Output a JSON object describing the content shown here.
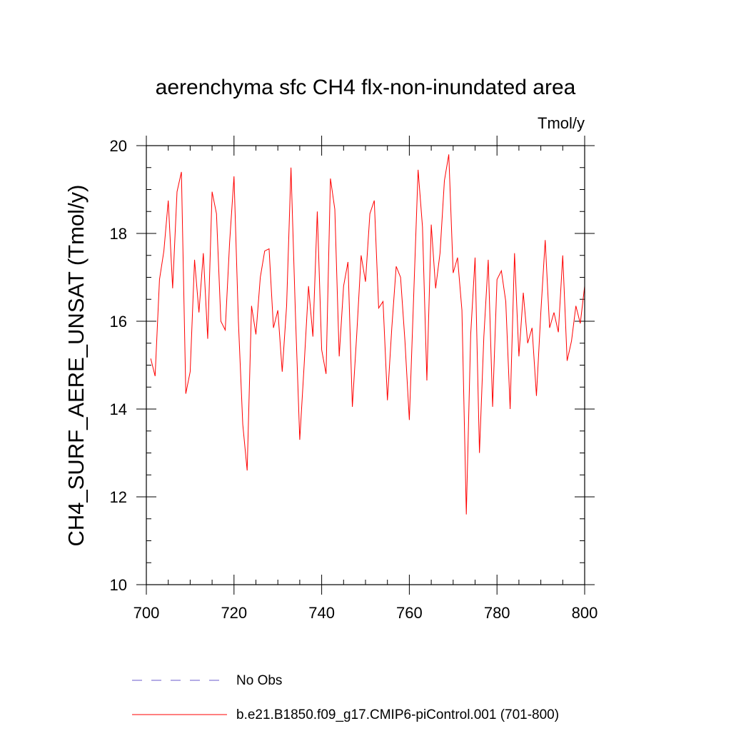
{
  "chart_data": {
    "type": "line",
    "title": "aerenchyma sfc CH4 flx-non-inundated area",
    "units_label": "Tmol/y",
    "ylabel": "CH4_SURF_AERE_UNSAT  (Tmol/y)",
    "xlabel": "",
    "xlim": [
      700,
      800
    ],
    "ylim": [
      10,
      20
    ],
    "xticks": [
      700,
      720,
      740,
      760,
      780,
      800
    ],
    "yticks": [
      10,
      12,
      14,
      16,
      18,
      20
    ],
    "xtick_labels": [
      "700",
      "720",
      "740",
      "760",
      "780",
      "800"
    ],
    "ytick_labels": [
      "10",
      "12",
      "14",
      "16",
      "18",
      "20"
    ],
    "x_minor_step": 5,
    "y_minor_step": 0.5,
    "series": [
      {
        "name": "No Obs",
        "color": "#6a5acd",
        "dash": "dashed",
        "x": [],
        "values": []
      },
      {
        "name": "b.e21.B1850.f09_g17.CMIP6-piControl.001 (701-800)",
        "color": "#ff0000",
        "dash": "solid",
        "x": [
          701,
          702,
          703,
          704,
          705,
          706,
          707,
          708,
          709,
          710,
          711,
          712,
          713,
          714,
          715,
          716,
          717,
          718,
          719,
          720,
          721,
          722,
          723,
          724,
          725,
          726,
          727,
          728,
          729,
          730,
          731,
          732,
          733,
          734,
          735,
          736,
          737,
          738,
          739,
          740,
          741,
          742,
          743,
          744,
          745,
          746,
          747,
          748,
          749,
          750,
          751,
          752,
          753,
          754,
          755,
          756,
          757,
          758,
          759,
          760,
          761,
          762,
          763,
          764,
          765,
          766,
          767,
          768,
          769,
          770,
          771,
          772,
          773,
          774,
          775,
          776,
          777,
          778,
          779,
          780,
          781,
          782,
          783,
          784,
          785,
          786,
          787,
          788,
          789,
          790,
          791,
          792,
          793,
          794,
          795,
          796,
          797,
          798,
          799,
          800
        ],
        "values": [
          15.15,
          14.75,
          16.95,
          17.6,
          18.75,
          16.75,
          18.95,
          19.4,
          14.35,
          14.85,
          17.4,
          16.2,
          17.55,
          15.6,
          18.95,
          18.45,
          16.0,
          15.8,
          17.8,
          19.3,
          16.0,
          13.65,
          12.6,
          16.35,
          15.7,
          17.0,
          17.6,
          17.65,
          15.85,
          16.25,
          14.85,
          16.35,
          19.5,
          16.2,
          13.3,
          15.0,
          16.8,
          15.65,
          18.5,
          15.35,
          14.8,
          19.25,
          18.55,
          15.2,
          16.8,
          17.35,
          14.05,
          15.7,
          17.5,
          16.9,
          18.45,
          18.75,
          16.3,
          16.45,
          14.2,
          15.85,
          17.25,
          17.0,
          15.55,
          13.75,
          16.6,
          19.45,
          18.15,
          14.65,
          18.2,
          16.75,
          17.55,
          19.2,
          19.8,
          17.1,
          17.45,
          16.25,
          11.6,
          15.7,
          17.45,
          13.0,
          15.65,
          17.4,
          14.05,
          16.95,
          17.15,
          16.45,
          14.0,
          17.55,
          15.2,
          16.65,
          15.5,
          15.85,
          14.3,
          16.2,
          17.85,
          15.85,
          16.2,
          15.75,
          17.5,
          15.1,
          15.55,
          16.35,
          15.95,
          16.8
        ]
      }
    ],
    "legend": [
      {
        "label": "No Obs",
        "color": "#6a5acd",
        "dash": "dashed"
      },
      {
        "label": "b.e21.B1850.f09_g17.CMIP6-piControl.001 (701-800)",
        "color": "#ff0000",
        "dash": "solid"
      }
    ],
    "grid": false
  }
}
